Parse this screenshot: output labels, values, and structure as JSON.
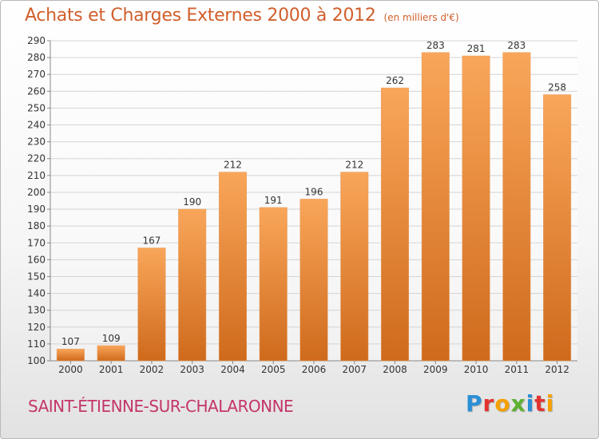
{
  "header": {
    "title": "Achats et Charges Externes 2000 à 2012",
    "subtitle": "(en milliers d'€)"
  },
  "commune": "SAINT-ÉTIENNE-SUR-CHALARONNE",
  "brand": {
    "name": "Proxiti",
    "letters": [
      {
        "char": "P",
        "color": "#2a8fd6"
      },
      {
        "char": "r",
        "color": "#e2342f"
      },
      {
        "char": "o",
        "color": "#f5a000"
      },
      {
        "char": "x",
        "color": "#5db12f"
      },
      {
        "char": "i",
        "color": "#2a8fd6"
      },
      {
        "char": "t",
        "color": "#e2342f"
      },
      {
        "char": "i",
        "color": "#f5a000"
      }
    ]
  },
  "colors": {
    "bar_top": "#f9a65a",
    "bar_bottom": "#cf6a1c",
    "grid": "#d4d4d4",
    "axis_text": "#333333"
  },
  "chart_data": {
    "type": "bar",
    "title": "Achats et Charges Externes 2000 à 2012",
    "xlabel": "",
    "ylabel": "",
    "categories": [
      "2000",
      "2001",
      "2002",
      "2003",
      "2004",
      "2005",
      "2006",
      "2007",
      "2008",
      "2009",
      "2010",
      "2011",
      "2012"
    ],
    "values": [
      107,
      109,
      167,
      190,
      212,
      191,
      196,
      212,
      262,
      283,
      281,
      283,
      258
    ],
    "ylim": [
      100,
      290
    ],
    "yticks": [
      100,
      110,
      120,
      130,
      140,
      150,
      160,
      170,
      180,
      190,
      200,
      210,
      220,
      230,
      240,
      250,
      260,
      270,
      280,
      290
    ],
    "grid": true,
    "data_labels": true
  }
}
